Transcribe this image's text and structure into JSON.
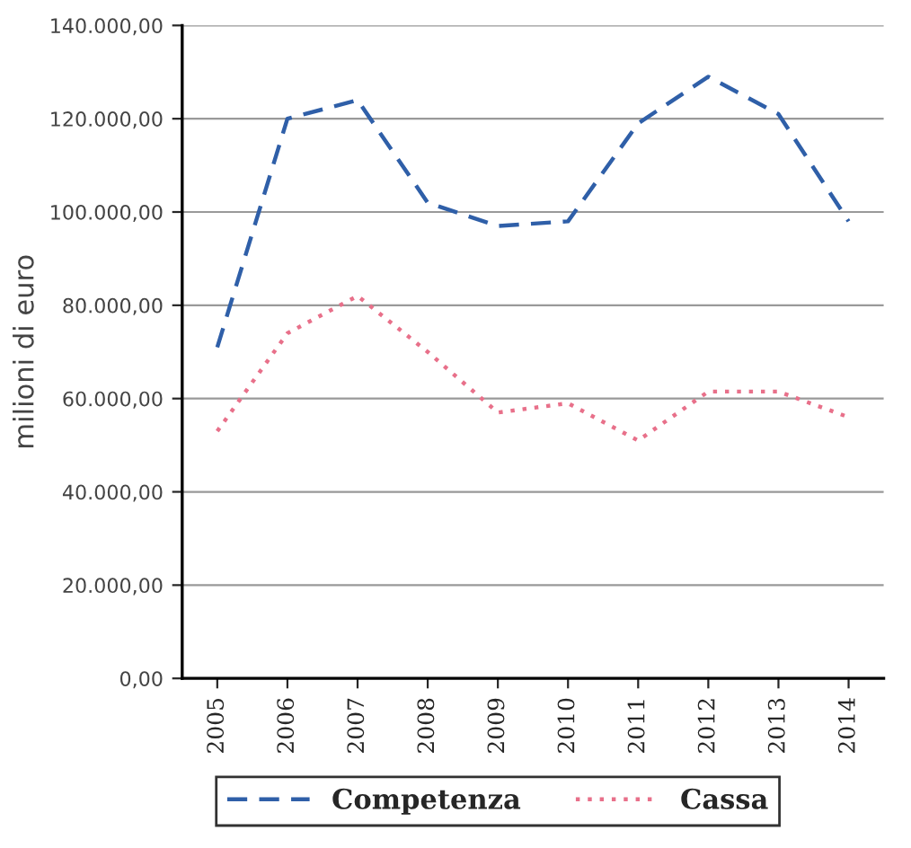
{
  "chart_data": {
    "type": "line",
    "ylabel": "milioni di euro",
    "categories": [
      "2005",
      "2006",
      "2007",
      "2008",
      "2009",
      "2010",
      "2011",
      "2012",
      "2013",
      "2014"
    ],
    "series": [
      {
        "name": "Competenza",
        "color": "#2f5fa8",
        "line_style": "dashed",
        "values": [
          71000,
          120000,
          124000,
          102000,
          97000,
          98000,
          119000,
          129000,
          121000,
          98000
        ]
      },
      {
        "name": "Cassa",
        "color": "#e8708a",
        "line_style": "dotted",
        "values": [
          53000,
          74000,
          82000,
          70000,
          57000,
          59000,
          51000,
          61500,
          61500,
          56000
        ]
      }
    ],
    "ylim": [
      0,
      140000
    ],
    "yticks": [
      {
        "value": 0,
        "label": "0,00"
      },
      {
        "value": 20000,
        "label": "20.000,00"
      },
      {
        "value": 40000,
        "label": "40.000,00"
      },
      {
        "value": 60000,
        "label": "60.000,00"
      },
      {
        "value": 80000,
        "label": "80.000,00"
      },
      {
        "value": 100000,
        "label": "100.000,00"
      },
      {
        "value": 120000,
        "label": "120.000,00"
      },
      {
        "value": 140000,
        "label": "140.000,00"
      }
    ],
    "grid": "y",
    "legend": "bottom",
    "marker": "none"
  }
}
